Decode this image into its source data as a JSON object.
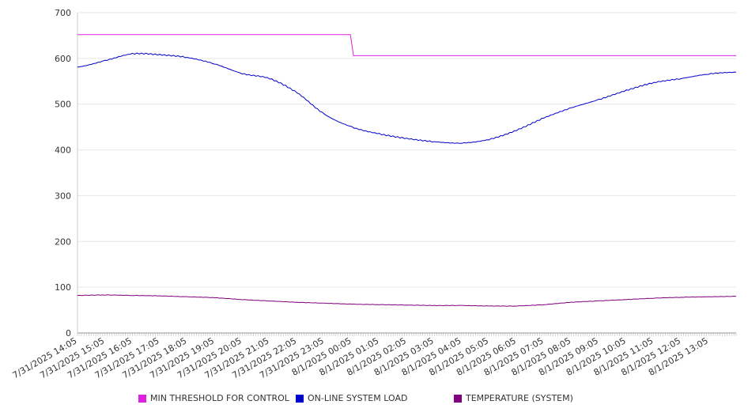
{
  "chart_data": {
    "type": "line",
    "title": "",
    "xlabel": "",
    "ylabel": "",
    "ylim": [
      0,
      700
    ],
    "yticks": [
      0,
      100,
      200,
      300,
      400,
      500,
      600,
      700
    ],
    "grid": true,
    "legend_position": "bottom",
    "x_tick_labels": [
      "7/31/2025 14:05",
      "7/31/2025 15:05",
      "7/31/2025 16:05",
      "7/31/2025 17:05",
      "7/31/2025 18:05",
      "7/31/2025 19:05",
      "7/31/2025 20:05",
      "7/31/2025 21:05",
      "7/31/2025 22:05",
      "7/31/2025 23:05",
      "8/1/2025 00:05",
      "8/1/2025 01:05",
      "8/1/2025 02:05",
      "8/1/2025 03:05",
      "8/1/2025 04:05",
      "8/1/2025 05:05",
      "8/1/2025 06:05",
      "8/1/2025 07:05",
      "8/1/2025 08:05",
      "8/1/2025 09:05",
      "8/1/2025 10:05",
      "8/1/2025 11:05",
      "8/1/2025 12:05",
      "8/1/2025 13:05"
    ],
    "x": [
      "7/31/2025 14:05",
      "7/31/2025 15:05",
      "7/31/2025 16:05",
      "7/31/2025 17:05",
      "7/31/2025 18:05",
      "7/31/2025 19:05",
      "7/31/2025 20:05",
      "7/31/2025 21:05",
      "7/31/2025 22:05",
      "7/31/2025 23:05",
      "8/1/2025 00:05",
      "8/1/2025 01:05",
      "8/1/2025 02:05",
      "8/1/2025 03:05",
      "8/1/2025 04:05",
      "8/1/2025 05:05",
      "8/1/2025 06:05",
      "8/1/2025 07:05",
      "8/1/2025 08:05",
      "8/1/2025 09:05",
      "8/1/2025 10:05",
      "8/1/2025 11:05",
      "8/1/2025 12:05",
      "8/1/2025 13:05",
      "8/1/2025 14:05"
    ],
    "series": [
      {
        "name": "MIN THRESHOLD FOR CONTROL",
        "color": "#e020e0",
        "values": [
          652,
          652,
          652,
          652,
          652,
          652,
          652,
          652,
          652,
          652,
          606,
          606,
          606,
          606,
          606,
          606,
          606,
          606,
          606,
          606,
          606,
          606,
          606,
          606,
          606
        ],
        "step_at": "8/1/2025 00:05"
      },
      {
        "name": "ON-LINE SYSTEM LOAD",
        "color": "#0000cc",
        "values": [
          581,
          595,
          610,
          608,
          602,
          588,
          567,
          556,
          525,
          478,
          450,
          435,
          425,
          418,
          415,
          423,
          443,
          470,
          492,
          510,
          530,
          547,
          556,
          566,
          570
        ]
      },
      {
        "name": "TEMPERATURE (SYSTEM)",
        "color": "#800080",
        "values": [
          82,
          83,
          82,
          81,
          79,
          77,
          73,
          70,
          67,
          65,
          63,
          62,
          61,
          60,
          60,
          59,
          59,
          62,
          67,
          70,
          73,
          76,
          78,
          79,
          80
        ]
      }
    ]
  }
}
